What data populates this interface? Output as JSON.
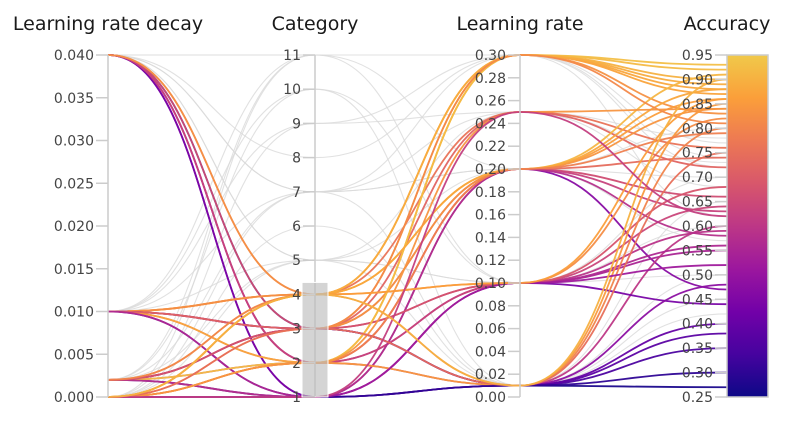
{
  "chart_data": {
    "type": "parallel-coordinates",
    "title": "",
    "axes": [
      {
        "name": "Learning rate decay",
        "range": [
          0,
          0.04
        ],
        "ticks": [
          "0.000",
          "0.005",
          "0.010",
          "0.015",
          "0.020",
          "0.025",
          "0.030",
          "0.035",
          "0.040"
        ],
        "tick_values": [
          0,
          0.005,
          0.01,
          0.015,
          0.02,
          0.025,
          0.03,
          0.035,
          0.04
        ]
      },
      {
        "name": "Category",
        "range": [
          1,
          11
        ],
        "ticks": [
          "1",
          "2",
          "3",
          "4",
          "5",
          "6",
          "7",
          "8",
          "9",
          "10",
          "11"
        ],
        "tick_values": [
          1,
          2,
          3,
          4,
          5,
          6,
          7,
          8,
          9,
          10,
          11
        ],
        "brush": [
          1,
          4.35
        ]
      },
      {
        "name": "Learning rate",
        "range": [
          0,
          0.3
        ],
        "ticks": [
          "0.00",
          "0.02",
          "0.04",
          "0.06",
          "0.08",
          "0.10",
          "0.12",
          "0.14",
          "0.16",
          "0.18",
          "0.20",
          "0.22",
          "0.24",
          "0.26",
          "0.28",
          "0.30"
        ],
        "tick_values": [
          0,
          0.02,
          0.04,
          0.06,
          0.08,
          0.1,
          0.12,
          0.14,
          0.16,
          0.18,
          0.2,
          0.22,
          0.24,
          0.26,
          0.28,
          0.3
        ]
      },
      {
        "name": "Accuracy",
        "range": [
          0.25,
          0.95
        ],
        "ticks": [
          "0.25",
          "0.30",
          "0.35",
          "0.40",
          "0.45",
          "0.50",
          "0.55",
          "0.60",
          "0.65",
          "0.70",
          "0.75",
          "0.80",
          "0.85",
          "0.90",
          "0.95"
        ],
        "tick_values": [
          0.25,
          0.3,
          0.35,
          0.4,
          0.45,
          0.5,
          0.55,
          0.6,
          0.65,
          0.7,
          0.75,
          0.8,
          0.85,
          0.9,
          0.95
        ],
        "colorbar": true
      }
    ],
    "colorscale": {
      "name": "plasma",
      "stops": [
        "#0d0887",
        "#46039f",
        "#7201a8",
        "#9c179e",
        "#bd3786",
        "#d8576b",
        "#ed7953",
        "#fb9f3a",
        "#f0c94a"
      ],
      "range": [
        0.25,
        0.95
      ]
    },
    "dimmed_color": "#d9d9d9",
    "rows": [
      [
        0.04,
        3,
        0.01,
        0.27
      ],
      [
        0.04,
        1,
        0.2,
        0.47
      ],
      [
        0.04,
        2,
        0.1,
        0.55
      ],
      [
        0.04,
        2,
        0.01,
        0.6
      ],
      [
        0.04,
        1,
        0.1,
        0.44
      ],
      [
        0.04,
        3,
        0.2,
        0.66
      ],
      [
        0.04,
        4,
        0.25,
        0.76
      ],
      [
        0.04,
        2,
        0.2,
        0.63
      ],
      [
        0.04,
        4,
        0.3,
        0.83
      ],
      [
        0.04,
        7,
        0.2,
        0.8
      ],
      [
        0.04,
        5,
        0.1,
        0.6
      ],
      [
        0.04,
        8,
        0.3,
        0.72
      ],
      [
        0.04,
        7,
        0.01,
        0.65
      ],
      [
        0.04,
        5,
        0.25,
        0.78
      ],
      [
        0.01,
        4,
        0.3,
        0.9
      ],
      [
        0.01,
        4,
        0.2,
        0.86
      ],
      [
        0.01,
        4,
        0.1,
        0.82
      ],
      [
        0.01,
        3,
        0.01,
        0.35
      ],
      [
        0.01,
        1,
        0.01,
        0.4
      ],
      [
        0.01,
        3,
        0.1,
        0.59
      ],
      [
        0.01,
        2,
        0.2,
        0.74
      ],
      [
        0.01,
        2,
        0.3,
        0.88
      ],
      [
        0.01,
        3,
        0.25,
        0.72
      ],
      [
        0.01,
        1,
        0.1,
        0.56
      ],
      [
        0.01,
        11,
        0.2,
        0.7
      ],
      [
        0.01,
        7,
        0.3,
        0.62
      ],
      [
        0.01,
        10,
        0.1,
        0.55
      ],
      [
        0.01,
        5,
        0.01,
        0.5
      ],
      [
        0.01,
        9,
        0.25,
        0.73
      ],
      [
        0.002,
        3,
        0.3,
        0.87
      ],
      [
        0.002,
        3,
        0.2,
        0.84
      ],
      [
        0.002,
        3,
        0.01,
        0.48
      ],
      [
        0.002,
        1,
        0.01,
        0.38
      ],
      [
        0.002,
        2,
        0.1,
        0.64
      ],
      [
        0.002,
        4,
        0.2,
        0.91
      ],
      [
        0.002,
        2,
        0.3,
        0.93
      ],
      [
        0.002,
        1,
        0.2,
        0.58
      ],
      [
        0.002,
        3,
        0.1,
        0.68
      ],
      [
        0.002,
        4,
        0.01,
        0.8
      ],
      [
        0.002,
        11,
        0.3,
        0.77
      ],
      [
        0.002,
        7,
        0.2,
        0.66
      ],
      [
        0.002,
        5,
        0.1,
        0.5
      ],
      [
        0.002,
        10,
        0.01,
        0.45
      ],
      [
        0.0,
        2,
        0.3,
        0.92
      ],
      [
        0.0,
        4,
        0.3,
        0.89
      ],
      [
        0.0,
        2,
        0.01,
        0.85
      ],
      [
        0.0,
        1,
        0.01,
        0.3
      ],
      [
        0.0,
        4,
        0.2,
        0.88
      ],
      [
        0.0,
        3,
        0.3,
        0.81
      ],
      [
        0.0,
        2,
        0.2,
        0.79
      ],
      [
        0.0,
        1,
        0.1,
        0.52
      ],
      [
        0.0,
        4,
        0.1,
        0.86
      ],
      [
        0.0,
        2,
        0.25,
        0.84
      ],
      [
        0.0,
        3,
        0.01,
        0.75
      ],
      [
        0.0,
        1,
        0.25,
        0.62
      ],
      [
        0.0,
        4,
        0.01,
        0.9
      ],
      [
        0.0,
        11,
        0.1,
        0.7
      ],
      [
        0.0,
        7,
        0.25,
        0.68
      ],
      [
        0.0,
        5,
        0.2,
        0.57
      ],
      [
        0.0,
        6,
        0.01,
        0.42
      ],
      [
        0.0,
        9,
        0.3,
        0.74
      ]
    ]
  }
}
